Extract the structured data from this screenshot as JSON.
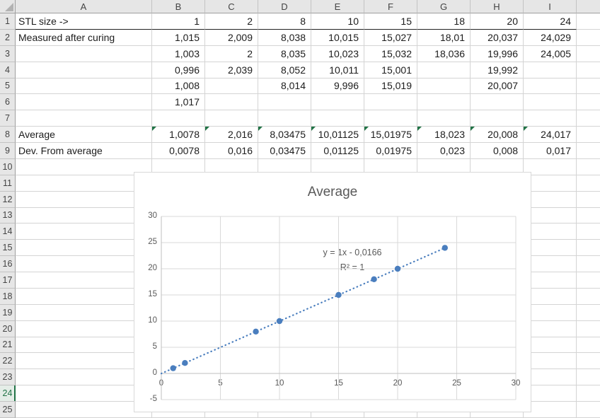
{
  "app": {
    "name": "Excel worksheet grid"
  },
  "colors": {
    "header_bg": "#E6E6E6",
    "gridline": "#D4D4D4",
    "active_green": "#217346",
    "flag_green": "#217346",
    "chart_text": "#595959",
    "marker_blue": "#4A7EBE",
    "chart_gridline": "#D9D9D9"
  },
  "grid": {
    "column_headers": [
      "A",
      "B",
      "C",
      "D",
      "E",
      "F",
      "G",
      "H",
      "I"
    ],
    "row_count": 25,
    "active_row": 24,
    "rows": [
      [
        "STL size ->",
        "1",
        "2",
        "8",
        "10",
        "15",
        "18",
        "20",
        "24"
      ],
      [
        "Measured after curing",
        "1,015",
        "2,009",
        "8,038",
        "10,015",
        "15,027",
        "18,01",
        "20,037",
        "24,029"
      ],
      [
        "",
        "1,003",
        "2",
        "8,035",
        "10,023",
        "15,032",
        "18,036",
        "19,996",
        "24,005"
      ],
      [
        "",
        "0,996",
        "2,039",
        "8,052",
        "10,011",
        "15,001",
        "",
        "19,992",
        ""
      ],
      [
        "",
        "1,008",
        "",
        "8,014",
        "9,996",
        "15,019",
        "",
        "20,007",
        ""
      ],
      [
        "",
        "1,017",
        "",
        "",
        "",
        "",
        "",
        "",
        ""
      ],
      [
        "",
        "",
        "",
        "",
        "",
        "",
        "",
        "",
        ""
      ],
      [
        "Average",
        "1,0078",
        "2,016",
        "8,03475",
        "10,01125",
        "15,01975",
        "18,023",
        "20,008",
        "24,017"
      ],
      [
        "Dev. From average",
        "0,0078",
        "0,016",
        "0,03475",
        "0,01125",
        "0,01975",
        "0,023",
        "0,008",
        "0,017"
      ]
    ],
    "flagged_cells": [
      "B8",
      "C8",
      "D8",
      "E8",
      "F8",
      "G8",
      "H8",
      "I8"
    ],
    "dark_bottom_border_row": 1
  },
  "chart_data": {
    "type": "scatter",
    "title": "Average",
    "x": [
      1,
      2,
      8,
      10,
      15,
      18,
      20,
      24
    ],
    "y": [
      1,
      2,
      8,
      10,
      15,
      18,
      20,
      24
    ],
    "xlim": [
      0,
      30
    ],
    "ylim": [
      -5,
      30
    ],
    "x_ticks": [
      0,
      5,
      10,
      15,
      20,
      25,
      30
    ],
    "y_ticks": [
      -5,
      0,
      5,
      10,
      15,
      20,
      25,
      30
    ],
    "grid": true,
    "legend": "none",
    "marker_color": "#4A7EBE",
    "trendline": {
      "style": "dotted",
      "slope": 1,
      "intercept": -0.0166,
      "x_range": [
        0,
        24
      ],
      "equation_label": "y = 1x - 0,0166",
      "r_squared_label": "R² = 1"
    }
  }
}
